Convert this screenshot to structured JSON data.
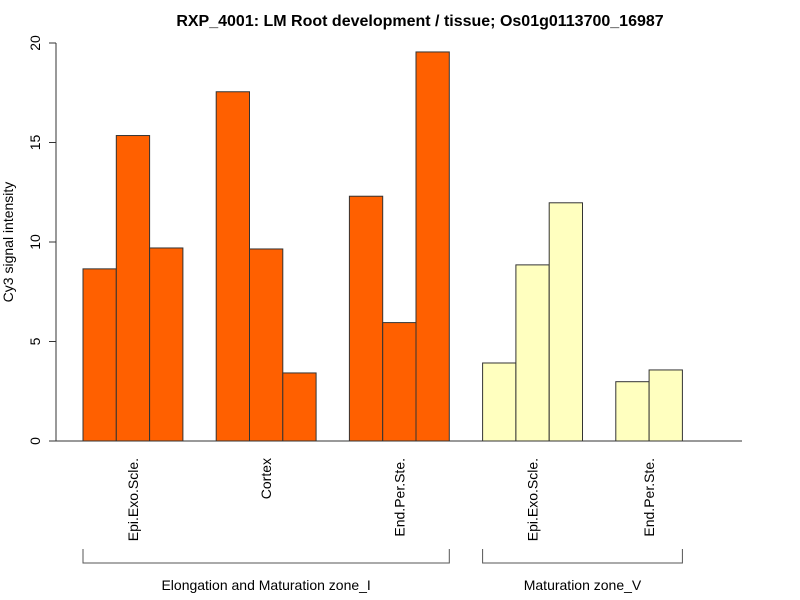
{
  "chart_data": {
    "type": "bar",
    "title": "RXP_4001: LM Root development / tissue; Os01g0113700_16987",
    "xlabel": "",
    "ylabel": "Cy3 signal intensity",
    "ylim": [
      0,
      20
    ],
    "yticks": [
      0,
      5,
      10,
      15,
      20
    ],
    "grid": false,
    "legend": "none",
    "groups": [
      {
        "name": "Elongation and Maturation zone_I",
        "color": "#FF6000",
        "categories": [
          {
            "label": "Epi.Exo.Scle.",
            "values": [
              8.65,
              15.35,
              9.7
            ]
          },
          {
            "label": "Cortex",
            "values": [
              17.55,
              9.65,
              3.42
            ]
          },
          {
            "label": "End.Per.Ste.",
            "values": [
              12.3,
              5.95,
              19.55
            ]
          }
        ]
      },
      {
        "name": "Maturation zone_V",
        "color": "#FFFFBF",
        "categories": [
          {
            "label": "Epi.Exo.Scle.",
            "values": [
              3.92,
              8.85,
              11.97
            ]
          },
          {
            "label": "End.Per.Ste.",
            "values": [
              2.98,
              3.57
            ]
          }
        ]
      }
    ]
  }
}
